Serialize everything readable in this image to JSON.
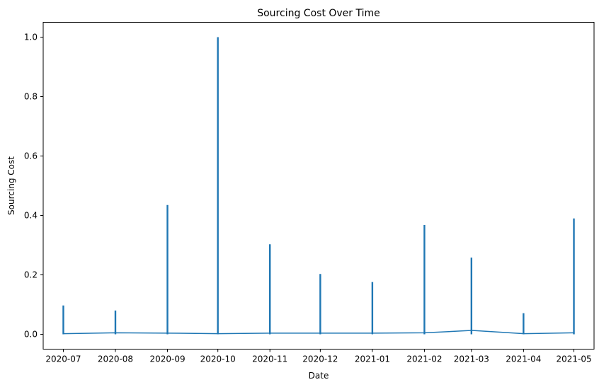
{
  "chart_data": {
    "type": "line",
    "title": "Sourcing Cost Over Time",
    "xlabel": "Date",
    "ylabel": "Sourcing Cost",
    "xlim": [
      "2020-06-19",
      "2021-05-13"
    ],
    "ylim": [
      -0.05,
      1.05
    ],
    "x_ticks": [
      "2020-07",
      "2020-08",
      "2020-09",
      "2020-10",
      "2020-11",
      "2020-12",
      "2021-01",
      "2021-02",
      "2021-03",
      "2021-04",
      "2021-05"
    ],
    "y_ticks": [
      "0.0",
      "0.2",
      "0.4",
      "0.6",
      "0.8",
      "1.0"
    ],
    "grid": false,
    "legend": "none",
    "color": "#1f77b4",
    "series": [
      {
        "points": [
          {
            "date": "2020-07-01",
            "min": 0.0,
            "max": 0.097,
            "end": 0.002
          },
          {
            "date": "2020-08-01",
            "min": 0.0,
            "max": 0.08,
            "end": 0.005
          },
          {
            "date": "2020-09-01",
            "min": 0.0,
            "max": 0.435,
            "end": 0.004
          },
          {
            "date": "2020-10-01",
            "min": 0.0,
            "max": 1.0,
            "end": 0.002
          },
          {
            "date": "2020-11-01",
            "min": 0.0,
            "max": 0.303,
            "end": 0.004
          },
          {
            "date": "2020-12-01",
            "min": 0.0,
            "max": 0.203,
            "end": 0.004
          },
          {
            "date": "2021-01-01",
            "min": 0.0,
            "max": 0.176,
            "end": 0.004
          },
          {
            "date": "2021-02-01",
            "min": 0.0,
            "max": 0.368,
            "end": 0.005
          },
          {
            "date": "2021-03-01",
            "min": 0.0,
            "max": 0.258,
            "end": 0.013
          },
          {
            "date": "2021-04-01",
            "min": 0.0,
            "max": 0.071,
            "end": 0.002
          },
          {
            "date": "2021-05-01",
            "min": 0.0,
            "max": 0.39,
            "end": 0.005
          }
        ]
      }
    ]
  }
}
